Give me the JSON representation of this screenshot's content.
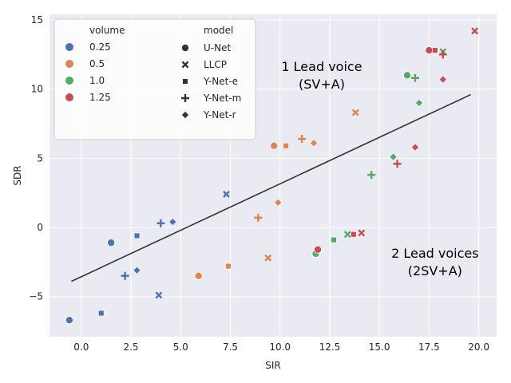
{
  "chart_data": {
    "type": "scatter",
    "xlabel": "SIR",
    "ylabel": "SDR",
    "xlim": [
      -1.6,
      20.9
    ],
    "ylim": [
      -7.9,
      15.4
    ],
    "xticks": [
      "0.0",
      "2.5",
      "5.0",
      "7.5",
      "10.0",
      "12.5",
      "15.0",
      "17.5",
      "20.0"
    ],
    "xtick_values": [
      0,
      2.5,
      5,
      7.5,
      10,
      12.5,
      15,
      17.5,
      20
    ],
    "yticks": [
      "−5",
      "0",
      "5",
      "10",
      "15"
    ],
    "ytick_values": [
      -5,
      0,
      5,
      10,
      15
    ],
    "grid": true,
    "background": "#eaeaf2",
    "legend_volume_title": "volume",
    "legend_model_title": "model",
    "legend_position": "upper-left",
    "volume_levels": [
      {
        "label": "0.25",
        "color": "#4c72b0"
      },
      {
        "label": "0.5",
        "color": "#dd8452"
      },
      {
        "label": "1.0",
        "color": "#55a868"
      },
      {
        "label": "1.25",
        "color": "#c44e52"
      }
    ],
    "models": [
      {
        "label": "U-Net",
        "marker": "circle"
      },
      {
        "label": "LLCP",
        "marker": "x"
      },
      {
        "label": "Y-Net-e",
        "marker": "square"
      },
      {
        "label": "Y-Net-m",
        "marker": "plus"
      },
      {
        "label": "Y-Net-r",
        "marker": "diamond"
      }
    ],
    "points": [
      {
        "volume": "0.25",
        "model": "U-Net",
        "x": -0.6,
        "y": -6.7
      },
      {
        "volume": "0.25",
        "model": "U-Net",
        "x": 1.5,
        "y": -1.1
      },
      {
        "volume": "0.25",
        "model": "LLCP",
        "x": 3.9,
        "y": -4.9
      },
      {
        "volume": "0.25",
        "model": "LLCP",
        "x": 7.3,
        "y": 2.4
      },
      {
        "volume": "0.25",
        "model": "Y-Net-e",
        "x": 1.0,
        "y": -6.2
      },
      {
        "volume": "0.25",
        "model": "Y-Net-e",
        "x": 2.8,
        "y": -0.6
      },
      {
        "volume": "0.25",
        "model": "Y-Net-m",
        "x": 2.2,
        "y": -3.5
      },
      {
        "volume": "0.25",
        "model": "Y-Net-m",
        "x": 4.0,
        "y": 0.3
      },
      {
        "volume": "0.25",
        "model": "Y-Net-r",
        "x": 2.8,
        "y": -3.1
      },
      {
        "volume": "0.25",
        "model": "Y-Net-r",
        "x": 4.6,
        "y": 0.4
      },
      {
        "volume": "0.5",
        "model": "U-Net",
        "x": 5.9,
        "y": -3.5
      },
      {
        "volume": "0.5",
        "model": "U-Net",
        "x": 9.7,
        "y": 5.9
      },
      {
        "volume": "0.5",
        "model": "LLCP",
        "x": 9.4,
        "y": -2.2
      },
      {
        "volume": "0.5",
        "model": "LLCP",
        "x": 13.8,
        "y": 8.3
      },
      {
        "volume": "0.5",
        "model": "Y-Net-e",
        "x": 7.4,
        "y": -2.8
      },
      {
        "volume": "0.5",
        "model": "Y-Net-e",
        "x": 10.3,
        "y": 5.9
      },
      {
        "volume": "0.5",
        "model": "Y-Net-m",
        "x": 8.9,
        "y": 0.7
      },
      {
        "volume": "0.5",
        "model": "Y-Net-m",
        "x": 11.1,
        "y": 6.4
      },
      {
        "volume": "0.5",
        "model": "Y-Net-r",
        "x": 9.9,
        "y": 1.8
      },
      {
        "volume": "0.5",
        "model": "Y-Net-r",
        "x": 11.7,
        "y": 6.1
      },
      {
        "volume": "1.0",
        "model": "U-Net",
        "x": 11.8,
        "y": -1.9
      },
      {
        "volume": "1.0",
        "model": "U-Net",
        "x": 16.4,
        "y": 11.0
      },
      {
        "volume": "1.0",
        "model": "LLCP",
        "x": 13.4,
        "y": -0.5
      },
      {
        "volume": "1.0",
        "model": "LLCP",
        "x": 18.2,
        "y": 12.7
      },
      {
        "volume": "1.0",
        "model": "Y-Net-e",
        "x": 12.7,
        "y": -0.9
      },
      {
        "volume": "1.0",
        "model": "Y-Net-e",
        "x": 17.8,
        "y": 12.8
      },
      {
        "volume": "1.0",
        "model": "Y-Net-m",
        "x": 14.6,
        "y": 3.8
      },
      {
        "volume": "1.0",
        "model": "Y-Net-m",
        "x": 16.8,
        "y": 10.8
      },
      {
        "volume": "1.0",
        "model": "Y-Net-r",
        "x": 15.7,
        "y": 5.1
      },
      {
        "volume": "1.0",
        "model": "Y-Net-r",
        "x": 17.0,
        "y": 9.0
      },
      {
        "volume": "1.25",
        "model": "U-Net",
        "x": 11.9,
        "y": -1.6
      },
      {
        "volume": "1.25",
        "model": "U-Net",
        "x": 17.5,
        "y": 12.8
      },
      {
        "volume": "1.25",
        "model": "LLCP",
        "x": 14.1,
        "y": -0.4
      },
      {
        "volume": "1.25",
        "model": "LLCP",
        "x": 19.8,
        "y": 14.2
      },
      {
        "volume": "1.25",
        "model": "Y-Net-e",
        "x": 13.7,
        "y": -0.5
      },
      {
        "volume": "1.25",
        "model": "Y-Net-e",
        "x": 17.8,
        "y": 12.8
      },
      {
        "volume": "1.25",
        "model": "Y-Net-m",
        "x": 15.9,
        "y": 4.6
      },
      {
        "volume": "1.25",
        "model": "Y-Net-m",
        "x": 18.2,
        "y": 12.5
      },
      {
        "volume": "1.25",
        "model": "Y-Net-r",
        "x": 16.8,
        "y": 5.8
      },
      {
        "volume": "1.25",
        "model": "Y-Net-r",
        "x": 18.2,
        "y": 10.7
      }
    ],
    "line": {
      "color": "#333333",
      "points": [
        [
          -0.5,
          -3.9
        ],
        [
          19.6,
          9.6
        ]
      ]
    },
    "annotations": [
      {
        "lines": [
          "1 Lead voice",
          "(SV+A)"
        ],
        "x": 12.1,
        "y": 11.3
      },
      {
        "lines": [
          "2 Lead voices",
          "(2SV+A)"
        ],
        "x": 17.8,
        "y": -2.2
      }
    ]
  }
}
